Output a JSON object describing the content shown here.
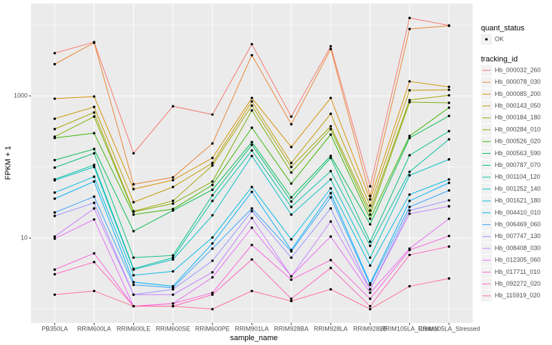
{
  "chart_data": {
    "type": "line",
    "x_label": "sample_name",
    "y_label": "FPKM + 1",
    "categories": [
      "PB350LA",
      "RRIM600LA",
      "RRIM600LE",
      "RRIM600SE",
      "RRIM600PE",
      "RRIM901LA",
      "RRIM928BA",
      "RRIM928LA",
      "RRIM928LB",
      "RRIM105LA_Control",
      "RRIM105LA_Stressed"
    ],
    "log_y": true,
    "ylim": [
      0.64,
      20000
    ],
    "yticks": [
      10,
      1000
    ],
    "y_minor_grid": [
      1,
      100,
      10000
    ],
    "grid": true,
    "point_color": "#000000",
    "panel_color": "#EBEBEB",
    "legend_position": "right",
    "point_legend": {
      "title": "quant_status",
      "labels": [
        "OK"
      ]
    },
    "legend_title": "tracking_id",
    "series": [
      {
        "name": "Hb_000032_260",
        "color": "#F8766D",
        "values": [
          4000,
          5720,
          156,
          715,
          547,
          5350,
          512,
          5000,
          53.5,
          12500,
          9800
        ]
      },
      {
        "name": "Hb_000078_030",
        "color": "#EA8331",
        "values": [
          2800,
          5600,
          57.2,
          71.5,
          214,
          3740,
          400,
          4570,
          39.1,
          8750,
          9700
        ]
      },
      {
        "name": "Hb_000085_200",
        "color": "#D89000",
        "values": [
          915,
          980,
          48.9,
          65.4,
          134,
          935,
          191,
          935,
          35,
          1600,
          1340
        ]
      },
      {
        "name": "Hb_000143_050",
        "color": "#C09B00",
        "values": [
          478,
          700,
          32,
          52.3,
          114,
          836,
          114,
          560,
          28.6,
          1200,
          1220
        ]
      },
      {
        "name": "Hb_000184_180",
        "color": "#A3A500",
        "values": [
          342,
          585,
          23.9,
          33.4,
          105,
          731,
          100,
          374,
          24.4,
          875,
          1020
        ]
      },
      {
        "name": "Hb_000284_010",
        "color": "#7CAE00",
        "values": [
          267,
          512,
          23.4,
          30.6,
          62.5,
          625,
          83.6,
          342,
          21.4,
          818,
          800
        ]
      },
      {
        "name": "Hb_000526_020",
        "color": "#39B600",
        "values": [
          256,
          299,
          21.4,
          25.6,
          56,
          357,
          58.5,
          286,
          18.7,
          273,
          684
        ]
      },
      {
        "name": "Hb_000563_590",
        "color": "#00BB4E",
        "values": [
          125,
          179,
          12.5,
          24.4,
          47.8,
          224,
          37.4,
          143,
          15.6,
          256,
          523
        ]
      },
      {
        "name": "Hb_000787_070",
        "color": "#00BF7D",
        "values": [
          98,
          156,
          5.3,
          5.7,
          40,
          205,
          32.7,
          134,
          8.9,
          146,
          320
        ]
      },
      {
        "name": "Hb_001104_120",
        "color": "#00C1A3",
        "values": [
          67,
          107,
          3.7,
          5.3,
          33.4,
          171,
          27.4,
          87.5,
          7.8,
          85.5,
          245
        ]
      },
      {
        "name": "Hb_001252_140",
        "color": "#00BFC4",
        "values": [
          65,
          100,
          3.6,
          5,
          20.9,
          143,
          21.4,
          66.9,
          5.3,
          76.4,
          128
        ]
      },
      {
        "name": "Hb_001621_180",
        "color": "#00BAE0",
        "values": [
          43.7,
          73,
          3,
          3.4,
          10.2,
          52.3,
          9.6,
          50,
          4.1,
          40.9,
          66.9
        ]
      },
      {
        "name": "Hb_004410_010",
        "color": "#00B0F6",
        "values": [
          35.8,
          62.5,
          2.4,
          2.1,
          8.4,
          44.7,
          6.8,
          42.8,
          2.3,
          33.4,
          59.8
        ]
      },
      {
        "name": "Hb_006469_060",
        "color": "#35A2FF",
        "values": [
          22.9,
          38.3,
          2.2,
          2,
          7.1,
          26.1,
          6.5,
          37.4,
          2.2,
          27.4,
          46.8
        ]
      },
      {
        "name": "Hb_007747_130",
        "color": "#9590FF",
        "values": [
          20.5,
          31.3,
          1.6,
          1.9,
          4.8,
          23.9,
          5.3,
          26.1,
          1.9,
          24.4,
          34
        ]
      },
      {
        "name": "Hb_008408_030",
        "color": "#C77CFF",
        "values": [
          10.5,
          26.1,
          1.6,
          1.6,
          3.3,
          19.1,
          2.9,
          17.1,
          1.9,
          22,
          28
        ]
      },
      {
        "name": "Hb_012305_060",
        "color": "#E76BF3",
        "values": [
          9.8,
          18.3,
          1.1,
          1.2,
          2.8,
          14,
          2.9,
          10.5,
          1.7,
          7.1,
          18.7
        ]
      },
      {
        "name": "Hb_017711_010",
        "color": "#FA62DB",
        "values": [
          3.6,
          6.1,
          1.1,
          1.2,
          1.7,
          8,
          2.6,
          4.9,
          1.4,
          6.8,
          10.7
        ]
      },
      {
        "name": "Hb_092272_020",
        "color": "#FF62BC",
        "values": [
          3.1,
          4.6,
          1.1,
          1.1,
          1.6,
          5,
          1.4,
          3.8,
          1.1,
          5.8,
          7.6
        ]
      },
      {
        "name": "Hb_115919_020",
        "color": "#FF6C91",
        "values": [
          1.6,
          1.8,
          1.1,
          1.1,
          1,
          1.8,
          1.3,
          1.9,
          1,
          2.1,
          2.7
        ]
      }
    ]
  }
}
